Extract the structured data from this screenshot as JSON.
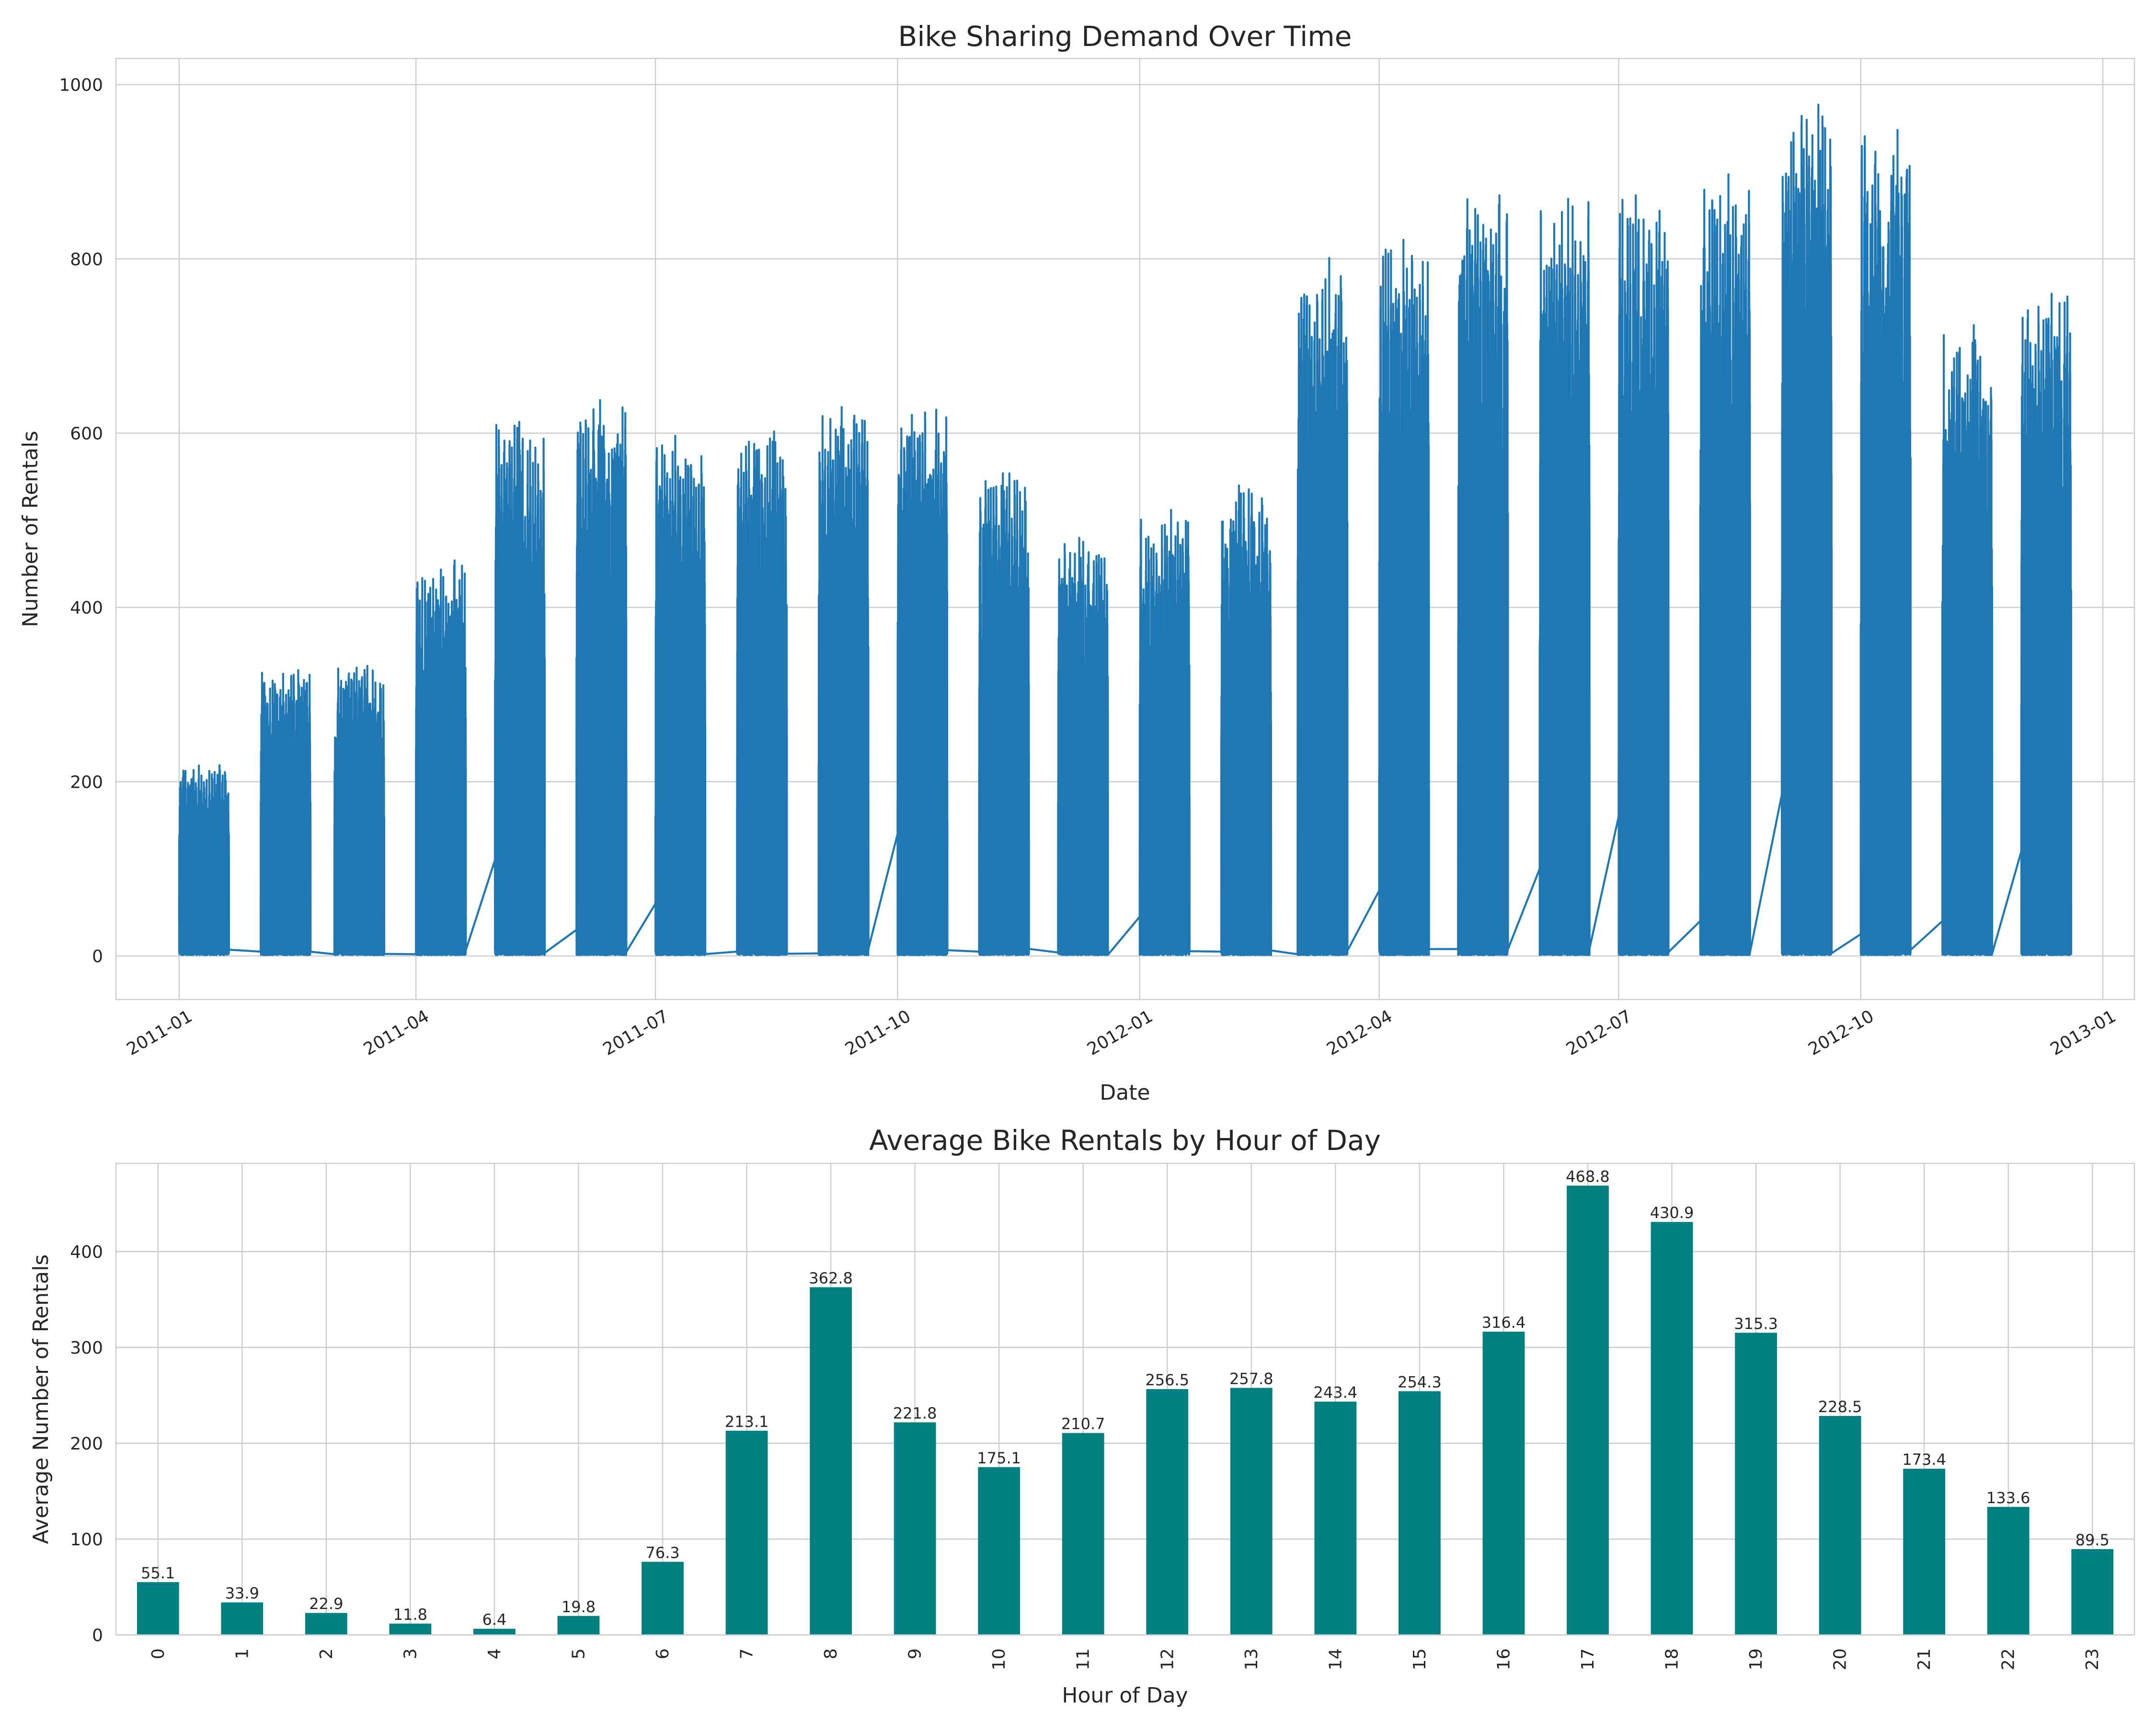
{
  "chart_data": [
    {
      "type": "line",
      "title": "Bike Sharing Demand Over Time",
      "xlabel": "Date",
      "ylabel": "Number of Rentals",
      "x_tick_labels": [
        "2011-01",
        "2011-04",
        "2011-07",
        "2011-10",
        "2012-01",
        "2012-04",
        "2012-07",
        "2012-10",
        "2013-01"
      ],
      "y_ticks": [
        0,
        200,
        400,
        600,
        800,
        1000
      ],
      "ylim": [
        -50,
        1030
      ],
      "xlim": [
        "2010-12-08",
        "2013-01-13"
      ],
      "grid": true,
      "color": "#1f77b4",
      "series": [
        {
          "note_type": "hourly counts observed days 1-19 of each month",
          "monthly_peak": [
            {
              "month": "2011-01",
              "min": 1,
              "max": 219
            },
            {
              "month": "2011-02",
              "min": 1,
              "max": 328
            },
            {
              "month": "2011-03",
              "min": 1,
              "max": 333
            },
            {
              "month": "2011-04",
              "min": 1,
              "max": 454
            },
            {
              "month": "2011-05",
              "min": 1,
              "max": 613
            },
            {
              "month": "2011-06",
              "min": 1,
              "max": 638
            },
            {
              "month": "2011-07",
              "min": 1,
              "max": 597
            },
            {
              "month": "2011-08",
              "min": 1,
              "max": 602
            },
            {
              "month": "2011-09",
              "min": 1,
              "max": 630
            },
            {
              "month": "2011-10",
              "min": 1,
              "max": 627
            },
            {
              "month": "2011-11",
              "min": 1,
              "max": 554
            },
            {
              "month": "2011-12",
              "min": 1,
              "max": 480
            },
            {
              "month": "2012-01",
              "min": 1,
              "max": 512
            },
            {
              "month": "2012-02",
              "min": 1,
              "max": 540
            },
            {
              "month": "2012-03",
              "min": 1,
              "max": 801
            },
            {
              "month": "2012-04",
              "min": 1,
              "max": 822
            },
            {
              "month": "2012-05",
              "min": 1,
              "max": 873
            },
            {
              "month": "2012-06",
              "min": 1,
              "max": 869
            },
            {
              "month": "2012-07",
              "min": 1,
              "max": 873
            },
            {
              "month": "2012-08",
              "min": 1,
              "max": 897
            },
            {
              "month": "2012-09",
              "min": 1,
              "max": 977
            },
            {
              "month": "2012-10",
              "min": 1,
              "max": 948
            },
            {
              "month": "2012-11",
              "min": 1,
              "max": 724
            },
            {
              "month": "2012-12",
              "min": 1,
              "max": 760
            }
          ],
          "gap_points": [
            {
              "x": "2011-01-19",
              "y": 36
            },
            {
              "x": "2011-02-01",
              "y": 5
            },
            {
              "x": "2011-02-19",
              "y": 36
            },
            {
              "x": "2011-03-01",
              "y": 2
            },
            {
              "x": "2011-03-19",
              "y": 60
            },
            {
              "x": "2011-04-01",
              "y": 2
            },
            {
              "x": "2011-04-19",
              "y": 44
            },
            {
              "x": "2011-05-01",
              "y": 110
            },
            {
              "x": "2011-05-19",
              "y": 82
            },
            {
              "x": "2011-06-01",
              "y": 30
            },
            {
              "x": "2011-06-19",
              "y": 100
            },
            {
              "x": "2011-07-01",
              "y": 60
            },
            {
              "x": "2011-07-19",
              "y": 106
            },
            {
              "x": "2011-08-01",
              "y": 5
            },
            {
              "x": "2011-08-19",
              "y": 128
            },
            {
              "x": "2011-09-01",
              "y": 3
            },
            {
              "x": "2011-09-19",
              "y": 60
            },
            {
              "x": "2011-10-01",
              "y": 140
            },
            {
              "x": "2011-10-19",
              "y": 84
            },
            {
              "x": "2011-11-01",
              "y": 5
            },
            {
              "x": "2011-11-19",
              "y": 120
            },
            {
              "x": "2011-12-01",
              "y": 4
            },
            {
              "x": "2011-12-19",
              "y": 68
            },
            {
              "x": "2012-01-01",
              "y": 45
            },
            {
              "x": "2012-01-19",
              "y": 70
            },
            {
              "x": "2012-02-01",
              "y": 5
            },
            {
              "x": "2012-02-19",
              "y": 50
            },
            {
              "x": "2012-03-01",
              "y": 2
            },
            {
              "x": "2012-03-19",
              "y": 48
            },
            {
              "x": "2012-04-01",
              "y": 75
            },
            {
              "x": "2012-04-19",
              "y": 160
            },
            {
              "x": "2012-05-01",
              "y": 8
            },
            {
              "x": "2012-05-19",
              "y": 270
            },
            {
              "x": "2012-06-01",
              "y": 100
            },
            {
              "x": "2012-06-19",
              "y": 122
            },
            {
              "x": "2012-07-01",
              "y": 160
            },
            {
              "x": "2012-07-19",
              "y": 80
            },
            {
              "x": "2012-08-01",
              "y": 40
            },
            {
              "x": "2012-08-19",
              "y": 50
            },
            {
              "x": "2012-09-01",
              "y": 185
            },
            {
              "x": "2012-09-19",
              "y": 140
            },
            {
              "x": "2012-10-01",
              "y": 25
            },
            {
              "x": "2012-10-19",
              "y": 140
            },
            {
              "x": "2012-11-01",
              "y": 40
            },
            {
              "x": "2012-11-19",
              "y": 75
            },
            {
              "x": "2012-12-01",
              "y": 120
            }
          ]
        }
      ]
    },
    {
      "type": "bar",
      "title": "Average Bike Rentals by Hour of Day",
      "xlabel": "Hour of Day",
      "ylabel": "Average Number of Rentals",
      "categories": [
        "0",
        "1",
        "2",
        "3",
        "4",
        "5",
        "6",
        "7",
        "8",
        "9",
        "10",
        "11",
        "12",
        "13",
        "14",
        "15",
        "16",
        "17",
        "18",
        "19",
        "20",
        "21",
        "22",
        "23"
      ],
      "values": [
        55.1,
        33.9,
        22.9,
        11.8,
        6.4,
        19.8,
        76.3,
        213.1,
        362.8,
        221.8,
        175.1,
        210.7,
        256.5,
        257.8,
        243.4,
        254.3,
        316.4,
        468.8,
        430.9,
        315.3,
        228.5,
        173.4,
        133.6,
        89.5
      ],
      "data_labels": [
        "55.1",
        "33.9",
        "22.9",
        "11.8",
        "6.4",
        "19.8",
        "76.3",
        "213.1",
        "362.8",
        "221.8",
        "175.1",
        "210.7",
        "256.5",
        "257.8",
        "243.4",
        "254.3",
        "316.4",
        "468.8",
        "430.9",
        "315.3",
        "228.5",
        "173.4",
        "133.6",
        "89.5"
      ],
      "y_ticks": [
        0,
        100,
        200,
        300,
        400
      ],
      "ylim": [
        0,
        492
      ],
      "grid": true,
      "color": "#008080"
    }
  ]
}
